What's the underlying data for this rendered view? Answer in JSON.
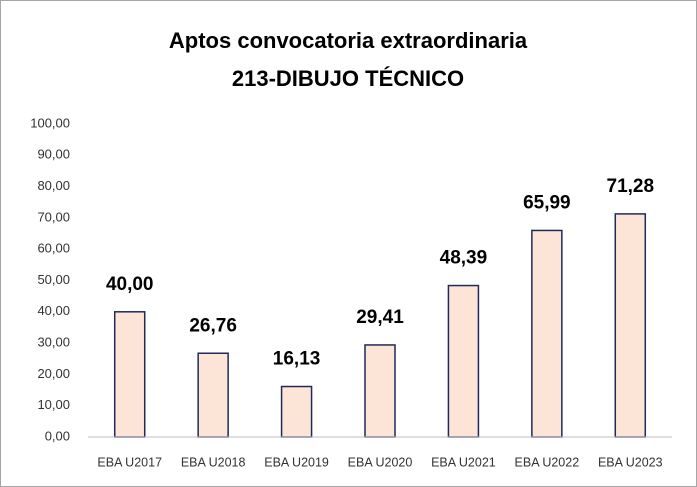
{
  "chart_data": {
    "type": "bar",
    "title": [
      "Aptos convocatoria extraordinaria",
      "213-DIBUJO TÉCNICO"
    ],
    "categories": [
      "EBA U2017",
      "EBA U2018",
      "EBA U2019",
      "EBA U2020",
      "EBA U2021",
      "EBA U2022",
      "EBA U2023"
    ],
    "values": [
      40.0,
      26.76,
      16.13,
      29.41,
      48.39,
      65.99,
      71.28
    ],
    "value_labels": [
      "40,00",
      "26,76",
      "16,13",
      "29,41",
      "48,39",
      "65,99",
      "71,28"
    ],
    "color": "#fce4d6",
    "edge_color": "#1f2a5a",
    "ylim": [
      0,
      100
    ],
    "yticks": [
      {
        "value": 0,
        "label": "0,00"
      },
      {
        "value": 10,
        "label": "10,00"
      },
      {
        "value": 20,
        "label": "20,00"
      },
      {
        "value": 30,
        "label": "30,00"
      },
      {
        "value": 40,
        "label": "40,00"
      },
      {
        "value": 50,
        "label": "50,00"
      },
      {
        "value": 60,
        "label": "60,00"
      },
      {
        "value": 70,
        "label": "70,00"
      },
      {
        "value": 80,
        "label": "80,00"
      },
      {
        "value": 90,
        "label": "90,00"
      },
      {
        "value": 100,
        "label": "100,00"
      }
    ],
    "grid": false
  }
}
